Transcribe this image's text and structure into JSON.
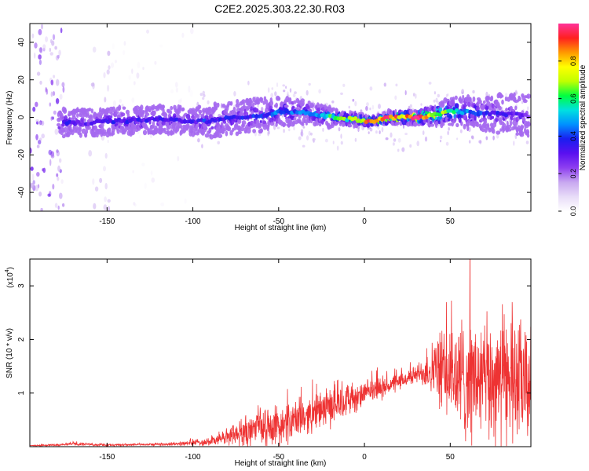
{
  "title": "C2E2.2025.303.22.30.R03",
  "colors": {
    "line": "#ee3333",
    "axis": "#000000",
    "colormap": [
      "#ffffff",
      "#e8dcf8",
      "#c8a8f0",
      "#8e3ff0",
      "#5a10f0",
      "#1a1ef0",
      "#0090ff",
      "#00e0e0",
      "#00ff40",
      "#c0ff00",
      "#ffff00",
      "#ff9900",
      "#ff2020",
      "#ff3399"
    ]
  },
  "chart_data": [
    {
      "type": "heatmap",
      "description": "spectrogram",
      "xlabel": "Height of straight line (km)",
      "ylabel": "Frequency (Hz)",
      "xlim": [
        -195,
        97
      ],
      "ylim": [
        -50,
        50
      ],
      "xticks": [
        -150,
        -100,
        -50,
        0,
        50
      ],
      "xtick_labels": [
        "-150",
        "-100",
        "-50",
        "0",
        "50"
      ],
      "yticks": [
        -40,
        -20,
        0,
        20,
        40
      ],
      "ytick_labels": [
        "-40",
        "-20",
        "0",
        "20",
        "40"
      ],
      "colorbar": {
        "label": "Normalized spectral amplitude",
        "range": [
          0,
          1
        ],
        "ticks": [
          0.0,
          0.2,
          0.4,
          0.6,
          0.8
        ],
        "tick_labels": [
          "0.0",
          "0.2",
          "0.4",
          "0.6",
          "0.8"
        ]
      },
      "ridge": {
        "x": [
          -175,
          -160,
          -150,
          -140,
          -120,
          -100,
          -90,
          -75,
          -60,
          -50,
          -40,
          -30,
          -25,
          -20,
          -15,
          -10,
          -5,
          0,
          5,
          10,
          15,
          20,
          25,
          30,
          40,
          50,
          60,
          70,
          80,
          95
        ],
        "freq": [
          -3,
          -3,
          -2,
          -2,
          -1,
          -2,
          -2,
          0,
          1,
          3,
          3,
          2,
          1,
          0,
          0,
          -1,
          -1,
          -2,
          -2,
          -1,
          0,
          0,
          0,
          0,
          1,
          3,
          3,
          2,
          2,
          1
        ],
        "amplitude": [
          0.35,
          0.3,
          0.35,
          0.35,
          0.35,
          0.35,
          0.4,
          0.35,
          0.4,
          0.45,
          0.45,
          0.5,
          0.5,
          0.6,
          0.6,
          0.65,
          0.7,
          0.85,
          0.9,
          0.95,
          0.9,
          0.85,
          0.9,
          0.95,
          0.8,
          0.6,
          0.5,
          0.4,
          0.35,
          0.3
        ],
        "spread_hz": [
          4,
          4,
          4,
          4,
          4,
          4,
          5,
          5,
          5,
          4,
          4,
          3,
          3,
          3,
          2,
          2,
          2,
          1.5,
          1.5,
          1.5,
          2,
          2,
          2,
          2,
          3,
          4,
          5,
          5,
          6,
          6
        ]
      },
      "noise_bands": [
        {
          "x_range": [
            -195,
            -175
          ],
          "level": 0.25
        },
        {
          "x_range": [
            -160,
            -148
          ],
          "level": 0.12
        },
        {
          "x_range": [
            -148,
            -120
          ],
          "level": 0.06
        },
        {
          "x_range": [
            -120,
            -100
          ],
          "level": 0.04
        }
      ]
    },
    {
      "type": "line",
      "description": "snr",
      "xlabel": "Height of straight line (km)",
      "ylabel": "SNR (10 * v/v)",
      "y_multiplier_label": "(x10",
      "y_multiplier_exponent": "4",
      "y_multiplier_close": ")",
      "xlim": [
        -195,
        97
      ],
      "ylim": [
        0,
        3.5
      ],
      "xticks": [
        -150,
        -100,
        -50,
        0,
        50
      ],
      "xtick_labels": [
        "-150",
        "-100",
        "-50",
        "0",
        "50"
      ],
      "yticks": [
        1,
        2,
        3
      ],
      "ytick_labels": [
        "1",
        "2",
        "3"
      ],
      "series": [
        {
          "name": "SNR",
          "x": [
            -195,
            -180,
            -170,
            -160,
            -150,
            -130,
            -110,
            -100,
            -90,
            -80,
            -70,
            -60,
            -50,
            -40,
            -30,
            -20,
            -10,
            -5,
            0,
            10,
            20,
            30,
            35,
            40,
            45,
            50,
            55,
            60,
            70,
            80,
            90,
            97
          ],
          "y_mean": [
            0.02,
            0.03,
            0.06,
            0.04,
            0.03,
            0.04,
            0.05,
            0.07,
            0.1,
            0.18,
            0.28,
            0.35,
            0.4,
            0.5,
            0.62,
            0.75,
            0.9,
            0.85,
            1.0,
            1.1,
            1.2,
            1.35,
            1.4,
            1.45,
            1.4,
            1.35,
            1.25,
            1.3,
            1.2,
            1.25,
            1.2,
            1.1
          ],
          "y_noise": [
            0.01,
            0.02,
            0.03,
            0.02,
            0.02,
            0.02,
            0.03,
            0.05,
            0.08,
            0.15,
            0.25,
            0.3,
            0.35,
            0.35,
            0.3,
            0.35,
            0.3,
            0.25,
            0.2,
            0.2,
            0.15,
            0.15,
            0.3,
            0.5,
            0.7,
            0.9,
            1.1,
            1.1,
            1.1,
            1.1,
            1.1,
            1.0
          ]
        }
      ]
    }
  ]
}
